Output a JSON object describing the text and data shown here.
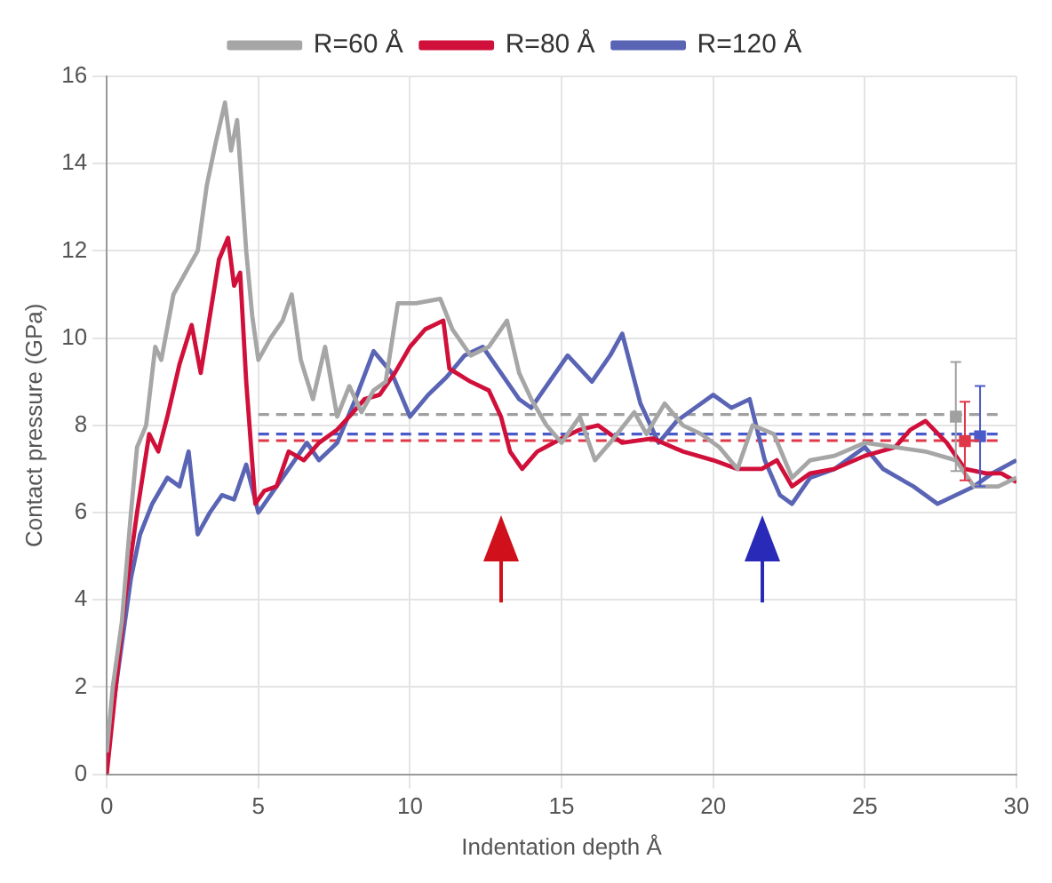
{
  "chart_data": {
    "type": "line",
    "xlabel": "Indentation depth Å",
    "ylabel": "Contact pressure (GPa)",
    "xlim": [
      0,
      30
    ],
    "ylim": [
      0,
      16
    ],
    "xticks": [
      0,
      5,
      10,
      15,
      20,
      25,
      30
    ],
    "yticks": [
      0,
      2,
      4,
      6,
      8,
      10,
      12,
      14,
      16
    ],
    "grid": true,
    "legend": "top",
    "marker": "none",
    "series": [
      {
        "name": "R=60 Å",
        "color": "#a6a6a6",
        "x": [
          0,
          0.2,
          0.5,
          0.8,
          1,
          1.3,
          1.6,
          1.8,
          2.2,
          2.6,
          3,
          3.3,
          3.6,
          3.9,
          4.1,
          4.3,
          4.6,
          4.8,
          5,
          5.4,
          5.8,
          6.1,
          6.4,
          6.8,
          7.2,
          7.6,
          8,
          8.4,
          8.8,
          9.2,
          9.6,
          10.2,
          11,
          11.4,
          12,
          12.6,
          13.2,
          13.6,
          14,
          14.5,
          15,
          15.6,
          16.1,
          16.6,
          17.4,
          17.8,
          18.4,
          19,
          19.6,
          20.2,
          20.8,
          21.3,
          22,
          22.6,
          23.2,
          24,
          25,
          26,
          27,
          28,
          28.6,
          29.4,
          30
        ],
        "values": [
          0.5,
          2,
          3.5,
          6,
          7.5,
          8,
          9.8,
          9.5,
          11,
          11.5,
          12,
          13.5,
          14.5,
          15.4,
          14.3,
          15,
          12,
          10.5,
          9.5,
          10,
          10.4,
          11,
          9.5,
          8.6,
          9.8,
          8.2,
          8.9,
          8.3,
          8.8,
          9,
          10.8,
          10.8,
          10.9,
          10.2,
          9.6,
          9.8,
          10.4,
          9.2,
          8.6,
          8,
          7.6,
          8.2,
          7.2,
          7.6,
          8.3,
          7.8,
          8.5,
          8,
          7.8,
          7.5,
          7,
          8,
          7.8,
          6.8,
          7.2,
          7.3,
          7.6,
          7.5,
          7.4,
          7.2,
          6.6,
          6.6,
          6.8
        ]
      },
      {
        "name": "R=80 Å",
        "color": "#d0103a",
        "x": [
          0,
          0.3,
          0.6,
          1,
          1.4,
          1.7,
          2,
          2.4,
          2.8,
          3.1,
          3.4,
          3.7,
          4,
          4.2,
          4.4,
          4.6,
          4.9,
          5.2,
          5.6,
          6,
          6.5,
          7,
          7.6,
          8,
          8.5,
          9,
          9.5,
          10,
          10.5,
          11.1,
          11.3,
          12,
          12.6,
          13,
          13.3,
          13.7,
          14.2,
          15,
          15.6,
          16.2,
          17,
          18,
          19,
          20,
          20.8,
          21.6,
          22.1,
          22.6,
          23.2,
          24,
          25,
          26,
          26.5,
          27,
          27.7,
          28.3,
          29,
          29.5,
          30
        ],
        "values": [
          0,
          2,
          4,
          6,
          7.8,
          7.4,
          8.2,
          9.4,
          10.3,
          9.2,
          10.5,
          11.8,
          12.3,
          11.2,
          11.5,
          9,
          6.2,
          6.5,
          6.6,
          7.4,
          7.2,
          7.6,
          7.9,
          8.2,
          8.6,
          8.7,
          9.2,
          9.8,
          10.2,
          10.4,
          9.3,
          9,
          8.8,
          8.2,
          7.4,
          7,
          7.4,
          7.7,
          7.9,
          8,
          7.6,
          7.7,
          7.4,
          7.2,
          7,
          7,
          7.2,
          6.6,
          6.9,
          7,
          7.3,
          7.5,
          7.9,
          8.1,
          7.6,
          7,
          6.9,
          6.9,
          6.7
        ]
      },
      {
        "name": "R=120 Å",
        "color": "#5a64b4",
        "x": [
          0,
          0.2,
          0.5,
          0.8,
          1.1,
          1.5,
          2,
          2.4,
          2.7,
          3,
          3.4,
          3.8,
          4.2,
          4.6,
          5,
          5.4,
          6,
          6.6,
          7,
          7.6,
          8.2,
          8.8,
          9.4,
          10,
          10.6,
          11.2,
          11.8,
          12.4,
          13,
          13.6,
          14,
          14.6,
          15.2,
          16,
          16.6,
          17,
          17.6,
          18.2,
          18.8,
          19.4,
          20,
          20.6,
          21.2,
          21.7,
          22.2,
          22.6,
          23.2,
          24,
          25,
          25.6,
          26.6,
          27.4,
          28,
          28.6,
          29.2,
          30
        ],
        "values": [
          0.5,
          1.5,
          3,
          4.5,
          5.5,
          6.2,
          6.8,
          6.6,
          7.4,
          5.5,
          6,
          6.4,
          6.3,
          7.1,
          6,
          6.4,
          7,
          7.6,
          7.2,
          7.6,
          8.6,
          9.7,
          9.2,
          8.2,
          8.7,
          9.1,
          9.6,
          9.8,
          9.2,
          8.6,
          8.4,
          9,
          9.6,
          9,
          9.6,
          10.1,
          8.5,
          7.6,
          8.1,
          8.4,
          8.7,
          8.4,
          8.6,
          7.2,
          6.4,
          6.2,
          6.8,
          7,
          7.5,
          7,
          6.6,
          6.2,
          6.4,
          6.6,
          6.9,
          7.2
        ]
      },
      {
        "color": "#a0a0a0",
        "line_style": "dashed",
        "x": [
          5,
          29.5
        ],
        "values": [
          8.25,
          8.25
        ]
      },
      {
        "color": "#e03848",
        "line_style": "dashed",
        "x": [
          5,
          29.5
        ],
        "values": [
          7.65,
          7.65
        ]
      },
      {
        "color": "#4a5ac8",
        "line_style": "dashed",
        "x": [
          5,
          29.5
        ],
        "values": [
          7.8,
          7.8
        ]
      },
      {
        "type": "scatter",
        "marker": "square",
        "color": "#a0a0a0",
        "x": [
          28
        ],
        "values": [
          8.2
        ],
        "errors": [
          1.25
        ]
      },
      {
        "type": "scatter",
        "marker": "square",
        "color": "#e03848",
        "x": [
          28.3
        ],
        "values": [
          7.64
        ],
        "errors": [
          0.9
        ]
      },
      {
        "type": "scatter",
        "marker": "square",
        "color": "#4a5ac8",
        "x": [
          28.8
        ],
        "values": [
          7.75
        ],
        "errors": [
          1.15
        ]
      }
    ]
  }
}
